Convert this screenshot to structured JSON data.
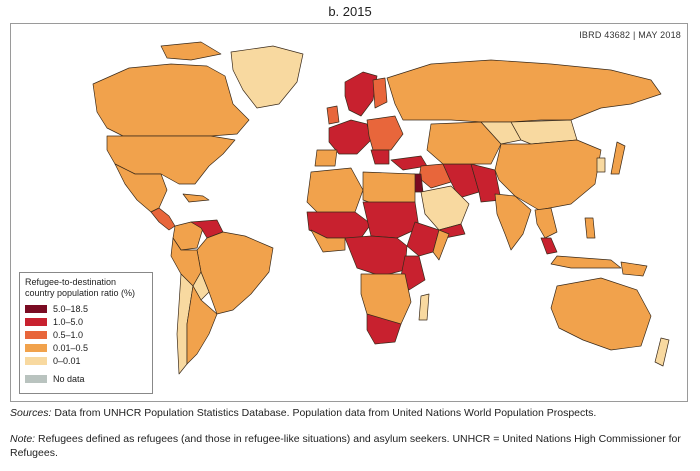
{
  "title": "b. 2015",
  "ibrd_label": "IBRD 43682  |  MAY 2018",
  "legend": {
    "title": "Refugee-to-destination country population ratio (%)",
    "items": [
      {
        "label": "5.0–18.5",
        "color": "#7a0b22"
      },
      {
        "label": "1.0–5.0",
        "color": "#c8212f"
      },
      {
        "label": "0.5–1.0",
        "color": "#e8663b"
      },
      {
        "label": "0.01–0.5",
        "color": "#f1a24c"
      },
      {
        "label": "0–0.01",
        "color": "#f8d9a0"
      },
      {
        "label": "No data",
        "color": "#b9c3bf"
      }
    ]
  },
  "footnotes": {
    "sources_label": "Sources:",
    "sources_text": "Data from UNHCR Population Statistics Database. Population data from United Nations World Population Prospects.",
    "note_label": "Note:",
    "note_text": "Refugees defined as refugees (and those in refugee-like situations) and asylum seekers. UNHCR = United Nations High Commissioner for Refugees."
  },
  "colors": {
    "high": "#7a0b22",
    "mid_high": "#c8212f",
    "mid": "#e8663b",
    "low": "#f1a24c",
    "very_low": "#f8d9a0",
    "no_data": "#b9c3bf",
    "border": "#3a2a1a"
  }
}
